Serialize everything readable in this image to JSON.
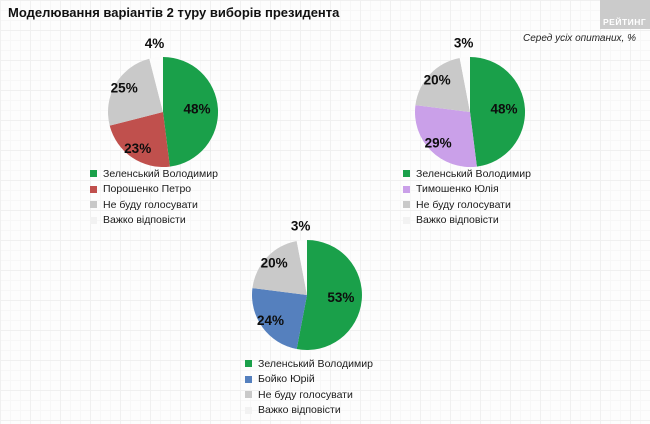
{
  "header": {
    "title": "Моделювання варіантів 2 туру виборів президента",
    "subtitle": "Серед усіх опитаних, %",
    "logo_text": "РЕЙТИНГ"
  },
  "chart_data": [
    {
      "type": "pie",
      "categories": [
        "Зеленський Володимир",
        "Порошенко Петро",
        "Не буду голосувати",
        "Важко відповісти"
      ],
      "values": [
        48,
        23,
        25,
        4
      ],
      "colors": [
        "#1aa04a",
        "#c0504d",
        "#c9c9c9",
        "#fcfcfc"
      ],
      "legend_colors": [
        "#1aa04a",
        "#c0504d",
        "#c9c9c9",
        "#f2f2f2"
      ],
      "start_angle_deg": 0,
      "direction": "clockwise",
      "legend_position": "below-left",
      "data_label_format": "percent"
    },
    {
      "type": "pie",
      "categories": [
        "Зеленський Володимир",
        "Тимошенко Юлія",
        "Не буду голосувати",
        "Важко відповісти"
      ],
      "values": [
        48,
        29,
        20,
        3
      ],
      "colors": [
        "#1aa04a",
        "#caa0e9",
        "#c9c9c9",
        "#fcfcfc"
      ],
      "legend_colors": [
        "#1aa04a",
        "#caa0e9",
        "#c9c9c9",
        "#f2f2f2"
      ],
      "start_angle_deg": 0,
      "direction": "clockwise",
      "legend_position": "below-left",
      "data_label_format": "percent"
    },
    {
      "type": "pie",
      "categories": [
        "Зеленський Володимир",
        "Бойко Юрій",
        "Не буду голосувати",
        "Важко відповісти"
      ],
      "values": [
        53,
        24,
        20,
        3
      ],
      "colors": [
        "#1aa04a",
        "#5580be",
        "#c9c9c9",
        "#fcfcfc"
      ],
      "legend_colors": [
        "#1aa04a",
        "#5580be",
        "#c9c9c9",
        "#f2f2f2"
      ],
      "start_angle_deg": 0,
      "direction": "clockwise",
      "legend_position": "below-left",
      "data_label_format": "percent"
    }
  ]
}
